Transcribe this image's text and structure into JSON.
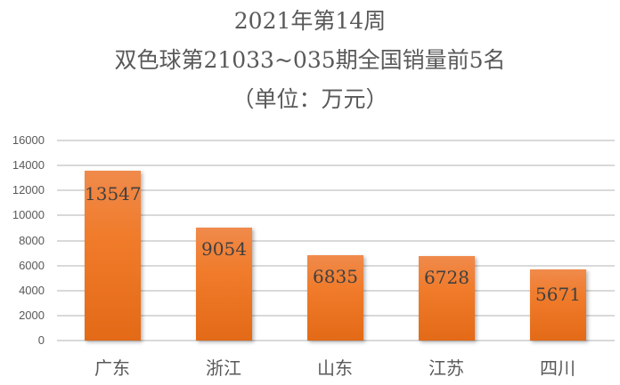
{
  "chart_data": {
    "type": "bar",
    "title": "2021年第14周 双色球第21033~035期全国销量前5名 (单位：万元)",
    "title_lines": [
      "2021年第14周",
      "双色球第21033~035期全国销量前5名",
      "（单位：万元）"
    ],
    "categories": [
      "广东",
      "浙江",
      "山东",
      "江苏",
      "四川"
    ],
    "values": [
      13547,
      9054,
      6835,
      6728,
      5671
    ],
    "value_labels": [
      "13547",
      "9054",
      "6835",
      "6728",
      "5671"
    ],
    "xlabel": "",
    "ylabel": "",
    "ylim": [
      0,
      16000
    ],
    "yticks": [
      "16000",
      "14000",
      "12000",
      "10000",
      "8000",
      "6000",
      "4000",
      "2000",
      "0"
    ],
    "grid": true,
    "legend": "none",
    "bar_color": "#f07b2a"
  }
}
